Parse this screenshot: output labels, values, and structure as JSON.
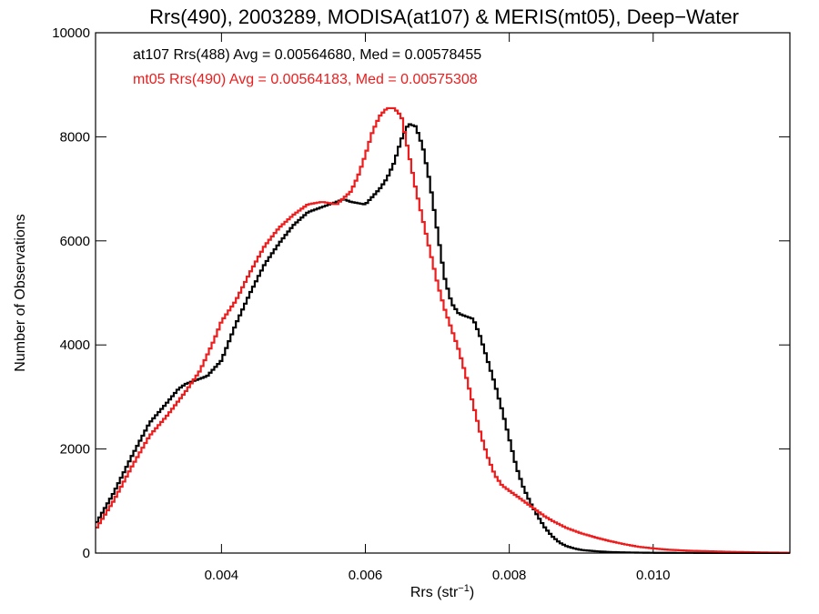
{
  "chart_data": {
    "type": "line",
    "title": "Rrs(490), 2003289, MODISA(at107) & MERIS(mt05), Deep−Water",
    "xlabel_main": "Rrs (str",
    "xlabel_sup": "−1",
    "xlabel_close": ")",
    "ylabel": "Number of Observations",
    "xlim": [
      0.00225,
      0.0119
    ],
    "ylim": [
      0,
      10000
    ],
    "x_ticks": [
      0.004,
      0.006,
      0.008,
      0.01
    ],
    "x_tick_labels": [
      "0.004",
      "0.006",
      "0.008",
      "0.010"
    ],
    "y_ticks": [
      0,
      2000,
      4000,
      6000,
      8000,
      10000
    ],
    "y_tick_labels": [
      "0",
      "2000",
      "4000",
      "6000",
      "8000",
      "10000"
    ],
    "annotations": [
      {
        "text": "at107 Rrs(488) Avg = 0.00564680, Med = 0.00578455",
        "color": "#000000"
      },
      {
        "text": "mt05 Rrs(490) Avg = 0.00564183, Med = 0.00575308",
        "color": "#ee1c1c"
      }
    ],
    "series": [
      {
        "color": "#000000",
        "x": [
          0.00225,
          0.0025,
          0.00275,
          0.003,
          0.00325,
          0.0034,
          0.0035,
          0.0036,
          0.0038,
          0.004,
          0.0042,
          0.0044,
          0.0046,
          0.0048,
          0.005,
          0.0052,
          0.0054,
          0.0056,
          0.0057,
          0.0058,
          0.006,
          0.0062,
          0.0063,
          0.0064,
          0.0065,
          0.0066,
          0.0067,
          0.0068,
          0.0069,
          0.007,
          0.0071,
          0.0072,
          0.0073,
          0.0074,
          0.0075,
          0.0076,
          0.0077,
          0.0078,
          0.0079,
          0.008,
          0.0081,
          0.0082,
          0.0083,
          0.0084,
          0.0085,
          0.0086,
          0.0087,
          0.0088,
          0.0089,
          0.009,
          0.0092,
          0.0094,
          0.0096,
          0.0098,
          0.01,
          0.0105,
          0.011,
          0.0119
        ],
        "y": [
          550,
          1150,
          1850,
          2500,
          2900,
          3150,
          3250,
          3300,
          3400,
          3700,
          4400,
          5000,
          5550,
          5950,
          6300,
          6550,
          6650,
          6750,
          6800,
          6750,
          6700,
          7000,
          7200,
          7500,
          7950,
          8250,
          8200,
          7800,
          7100,
          6200,
          5300,
          4800,
          4600,
          4550,
          4500,
          4150,
          3700,
          3250,
          2750,
          2200,
          1650,
          1250,
          950,
          700,
          480,
          320,
          200,
          130,
          90,
          60,
          35,
          20,
          12,
          8,
          5,
          3,
          2,
          1
        ]
      },
      {
        "color": "#ee1c1c",
        "x": [
          0.00225,
          0.0025,
          0.00275,
          0.003,
          0.00325,
          0.0035,
          0.0037,
          0.0039,
          0.004,
          0.0042,
          0.0044,
          0.0046,
          0.0048,
          0.005,
          0.0052,
          0.0054,
          0.0056,
          0.0058,
          0.0059,
          0.006,
          0.0061,
          0.0062,
          0.0063,
          0.0064,
          0.0065,
          0.0066,
          0.0067,
          0.0068,
          0.0069,
          0.007,
          0.0071,
          0.0072,
          0.0073,
          0.0074,
          0.0075,
          0.0076,
          0.0077,
          0.0078,
          0.0079,
          0.008,
          0.0081,
          0.0082,
          0.0083,
          0.0084,
          0.0085,
          0.0086,
          0.0088,
          0.009,
          0.0092,
          0.0094,
          0.0096,
          0.0098,
          0.01,
          0.0102,
          0.0105,
          0.011,
          0.0115,
          0.0119
        ],
        "y": [
          450,
          1000,
          1650,
          2250,
          2650,
          3100,
          3500,
          4100,
          4450,
          4850,
          5400,
          5900,
          6250,
          6500,
          6700,
          6750,
          6700,
          6950,
          7250,
          7650,
          8100,
          8400,
          8550,
          8550,
          8400,
          7700,
          7000,
          6400,
          5800,
          5200,
          4700,
          4300,
          3900,
          3400,
          2850,
          2300,
          1850,
          1500,
          1300,
          1200,
          1100,
          1000,
          900,
          800,
          700,
          620,
          480,
          380,
          300,
          230,
          170,
          120,
          90,
          65,
          45,
          25,
          12,
          5
        ]
      }
    ]
  }
}
